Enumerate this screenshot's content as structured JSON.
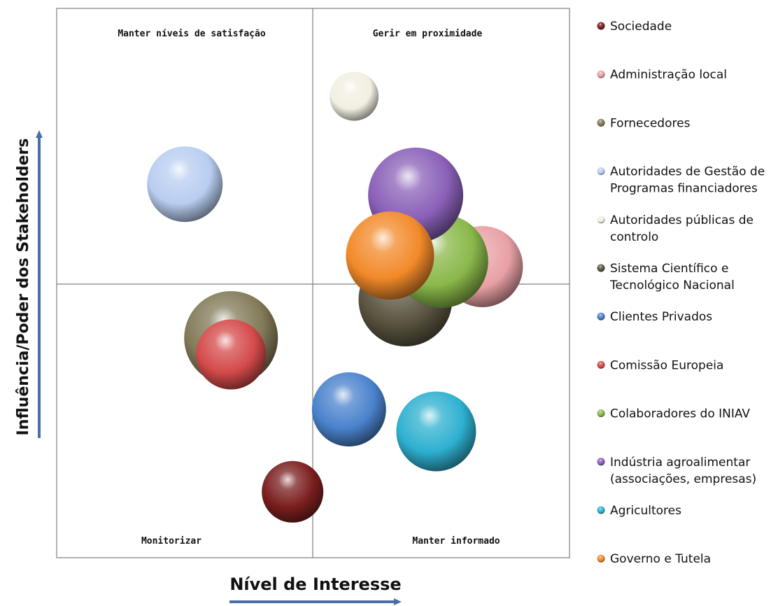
{
  "chart_data": {
    "type": "bubble",
    "title": "",
    "xlabel": "Nível de Interesse",
    "ylabel": "Influência/Poder dos Stakeholders",
    "xlim": [
      0,
      10
    ],
    "ylim": [
      0,
      10
    ],
    "grid": false,
    "legend_position": "right",
    "quadrants": {
      "top_left": "Manter níveis de satisfação",
      "top_right": "Gerir em proximidade",
      "bottom_left": "Monitorizar",
      "bottom_right": "Manter informado"
    },
    "series": [
      {
        "name": "Sociedade",
        "color": "#7a1e1e",
        "x": 4.6,
        "y": 1.2,
        "size": 44,
        "legend_lines": [
          "Sociedade"
        ]
      },
      {
        "name": "Administração local",
        "color": "#e8a0a4",
        "x": 8.3,
        "y": 5.3,
        "size": 58,
        "legend_lines": [
          "Administração local"
        ]
      },
      {
        "name": "Fornecedores",
        "color": "#827a58",
        "x": 3.4,
        "y": 4.0,
        "size": 67,
        "legend_lines": [
          "Fornecedores"
        ]
      },
      {
        "name": "Autoridades de Gestão de Programas financiadores",
        "color": "#b8cdf0",
        "x": 2.5,
        "y": 6.8,
        "size": 54,
        "legend_lines": [
          "Autoridades de Gestão de",
          "Programas financiadores"
        ]
      },
      {
        "name": "Autoridades públicas de controlo",
        "color": "#f2efe2",
        "x": 5.8,
        "y": 8.4,
        "size": 35,
        "legend_lines": [
          "Autoridades públicas de",
          "controlo"
        ]
      },
      {
        "name": "Sistema Científico e Tecnológico Nacional",
        "color": "#5a5440",
        "x": 6.8,
        "y": 4.7,
        "size": 67,
        "legend_lines": [
          "Sistema Científico e",
          "Tecnológico Nacional"
        ]
      },
      {
        "name": "Clientes Privados",
        "color": "#4a82cc",
        "x": 5.7,
        "y": 2.7,
        "size": 53,
        "legend_lines": [
          "Clientes Privados"
        ]
      },
      {
        "name": "Comissão Europeia",
        "color": "#d44a4a",
        "x": 3.4,
        "y": 3.7,
        "size": 50,
        "legend_lines": [
          "Comissão Europeia"
        ]
      },
      {
        "name": "Colaboradores do INIAV",
        "color": "#8ab84a",
        "x": 7.5,
        "y": 5.4,
        "size": 67,
        "legend_lines": [
          "Colaboradores do INIAV"
        ]
      },
      {
        "name": "Indústria agroalimentar (associações, empresas)",
        "color": "#8a60b8",
        "x": 7.0,
        "y": 6.6,
        "size": 68,
        "legend_lines": [
          "Indústria agroalimentar",
          "(associações, empresas)"
        ]
      },
      {
        "name": "Agricultores",
        "color": "#2eb0d0",
        "x": 7.4,
        "y": 2.3,
        "size": 57,
        "legend_lines": [
          "Agricultores"
        ]
      },
      {
        "name": "Governo e Tutela",
        "color": "#f28a2a",
        "x": 6.5,
        "y": 5.5,
        "size": 63,
        "legend_lines": [
          "Governo e Tutela"
        ]
      }
    ]
  }
}
